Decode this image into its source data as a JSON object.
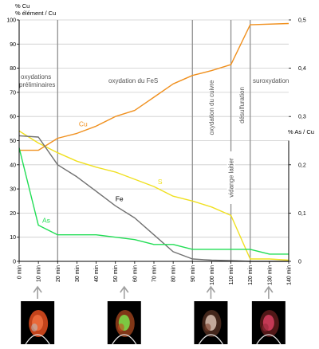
{
  "chart_data": {
    "type": "line",
    "y_left_label": [
      "% Cu",
      "% élément / Cu"
    ],
    "y_right_label": "% As / Cu",
    "x_tick_labels": [
      "0 min",
      "10 min",
      "20 min",
      "30 min",
      "40 min",
      "50 min",
      "60 min",
      "70 min",
      "80 min",
      "90 min",
      "100 min",
      "110 min",
      "120 min",
      "130 min",
      "140 min"
    ],
    "x_values": [
      0,
      10,
      20,
      30,
      40,
      50,
      60,
      70,
      80,
      90,
      100,
      110,
      120,
      130,
      140
    ],
    "xlim": [
      0,
      140
    ],
    "ylim_left": [
      0,
      100
    ],
    "y_left_ticks": [
      "0",
      "10",
      "20",
      "30",
      "40",
      "50",
      "60",
      "70",
      "80",
      "90",
      "100"
    ],
    "ylim_right": [
      0,
      0.5
    ],
    "y_right_ticks": [
      "0",
      "0,1",
      "0,2",
      "0,3",
      "0,4",
      "0,5"
    ],
    "grid": true,
    "series": [
      {
        "name": "Cu",
        "color": "#f0901e",
        "label_at": [
          31,
          56
        ],
        "points": [
          [
            0,
            46
          ],
          [
            10,
            46
          ],
          [
            20,
            51
          ],
          [
            30,
            53
          ],
          [
            40,
            56
          ],
          [
            50,
            60
          ],
          [
            60,
            62.5
          ],
          [
            70,
            68
          ],
          [
            80,
            73.5
          ],
          [
            90,
            77
          ],
          [
            100,
            79
          ],
          [
            110,
            81.5
          ],
          [
            120,
            98
          ],
          [
            140,
            98.5
          ]
        ]
      },
      {
        "name": "S",
        "color": "#f0e020",
        "label_at": [
          72,
          32
        ],
        "points": [
          [
            0,
            54
          ],
          [
            10,
            49
          ],
          [
            20,
            45
          ],
          [
            30,
            41.5
          ],
          [
            40,
            39
          ],
          [
            50,
            37
          ],
          [
            60,
            34
          ],
          [
            70,
            31
          ],
          [
            80,
            27
          ],
          [
            90,
            25
          ],
          [
            100,
            22.5
          ],
          [
            110,
            19
          ],
          [
            120,
            1
          ],
          [
            130,
            1
          ],
          [
            140,
            0.5
          ]
        ]
      },
      {
        "name": "Fe",
        "color": "#707070",
        "label_at": [
          50,
          25
        ],
        "points": [
          [
            0,
            52
          ],
          [
            10,
            51.5
          ],
          [
            20,
            40
          ],
          [
            30,
            35
          ],
          [
            40,
            29
          ],
          [
            50,
            23
          ],
          [
            60,
            18
          ],
          [
            70,
            11
          ],
          [
            80,
            4
          ],
          [
            90,
            1
          ],
          [
            100,
            0.5
          ],
          [
            110,
            0.3
          ],
          [
            120,
            0
          ],
          [
            140,
            0
          ]
        ]
      },
      {
        "name": "As",
        "color": "#22dd55",
        "label_at": [
          12,
          16
        ],
        "points": [
          [
            0,
            47
          ],
          [
            10,
            15
          ],
          [
            20,
            11
          ],
          [
            30,
            11
          ],
          [
            40,
            11
          ],
          [
            50,
            10
          ],
          [
            60,
            9
          ],
          [
            70,
            7
          ],
          [
            80,
            7
          ],
          [
            90,
            5
          ],
          [
            100,
            5
          ],
          [
            110,
            5
          ],
          [
            120,
            5
          ],
          [
            130,
            3
          ],
          [
            140,
            3
          ]
        ]
      }
    ],
    "vertical_markers": [
      20,
      90,
      110,
      120
    ],
    "phases": [
      {
        "id": "oxydations-preliminaires",
        "lines": [
          "oxydations",
          "préliminaires"
        ]
      },
      {
        "id": "oxydation-fes",
        "lines": [
          "oxydation du FeS"
        ]
      },
      {
        "id": "oxydation-cuivre",
        "lines": [
          "oxydation du cuivre"
        ]
      },
      {
        "id": "desulfuration",
        "lines": [
          "désulfuration"
        ]
      },
      {
        "id": "suroxydation",
        "lines": [
          "suroxydation"
        ]
      },
      {
        "id": "vidange-laitier",
        "lines": [
          "vidange laitier"
        ]
      }
    ],
    "thumbnails_at_minutes": [
      10,
      55,
      100,
      130
    ]
  },
  "colors": {
    "grid": "#cccccc",
    "marker": "#909090",
    "axis": "#000000",
    "thumb_bg": "#000000"
  }
}
